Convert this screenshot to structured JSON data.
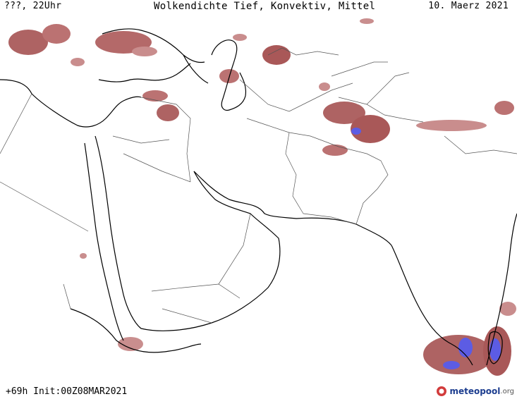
{
  "header": {
    "run_label": "???, 22Uhr",
    "title": "Wolkendichte   Tief, Konvektiv, Mittel",
    "date": "10. Maerz 2021"
  },
  "footer": {
    "init_label": "+69h Init:00Z08MAR2021",
    "logo_name": "meteopool",
    "logo_tld": ".org"
  },
  "colors": {
    "cloud_low": "#9b3b3b",
    "cloud_mid": "#c07a7a",
    "cloud_high": "#4040e0",
    "coast": "#000000",
    "border": "#555555"
  }
}
